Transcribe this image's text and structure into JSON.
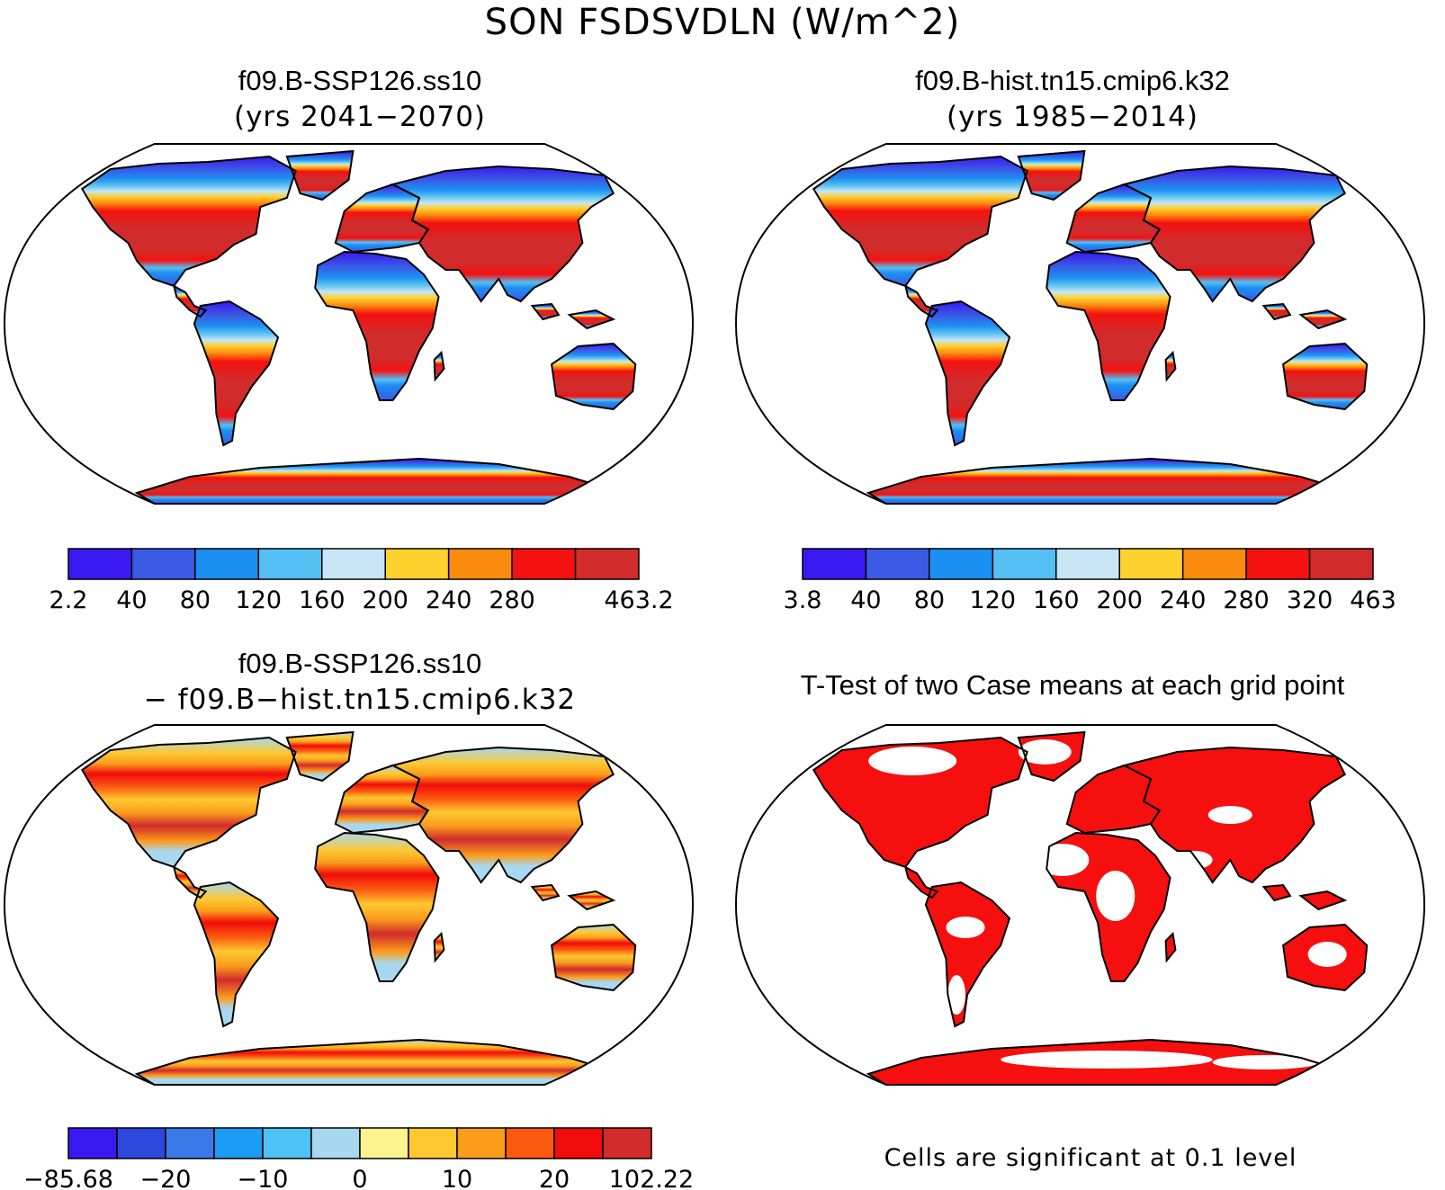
{
  "main_title": "SON FSDSVDLN (W/m^2)",
  "panels": [
    {
      "title_line1": "f09.B-SSP126.ss10",
      "title_line2": "(yrs 2041−2070)",
      "colorbar": {
        "colors": [
          "#3a18f2",
          "#3a5ae5",
          "#1c8ff3",
          "#54bff2",
          "#c7e5f5",
          "#fdd12e",
          "#fb8b0e",
          "#f51110",
          "#d12b2b"
        ],
        "labels": [
          "2.2",
          "40",
          "80",
          "120",
          "160",
          "200",
          "240",
          "280",
          "463.2"
        ]
      }
    },
    {
      "title_line1": "f09.B-hist.tn15.cmip6.k32",
      "title_line2": "(yrs 1985−2014)",
      "colorbar": {
        "colors": [
          "#3a18f2",
          "#3a5ae5",
          "#1c8ff3",
          "#54bff2",
          "#c7e5f5",
          "#fdd12e",
          "#fb8b0e",
          "#f51110",
          "#d12b2b"
        ],
        "labels": [
          "3.8",
          "40",
          "80",
          "120",
          "160",
          "200",
          "240",
          "280",
          "320",
          "463"
        ]
      }
    },
    {
      "title_line1": "f09.B-SSP126.ss10",
      "title_line2": "− f09.B−hist.tn15.cmip6.k32",
      "colorbar": {
        "colors": [
          "#3a18f2",
          "#2c48dc",
          "#3a7ae8",
          "#1c9cf3",
          "#4cc3f3",
          "#a8d8f0",
          "#fdf38f",
          "#fdc830",
          "#fb9c1c",
          "#fb5a10",
          "#f10b0b",
          "#d12b2b"
        ],
        "labels": [
          "−85.68",
          "−20",
          "−10",
          "0",
          "10",
          "20",
          "102.22"
        ]
      }
    },
    {
      "title_line1": "T-Test of two Case means at each grid point",
      "footnote": "Cells are significant at 0.1 level"
    }
  ],
  "colors": {
    "ocean": "#ffffff",
    "coast": "#000000",
    "ttest_significant": "#f50f0f"
  }
}
